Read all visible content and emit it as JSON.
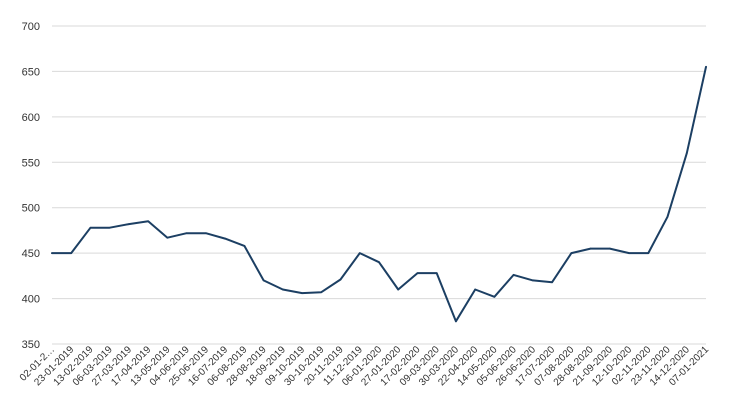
{
  "chart_data": {
    "type": "line",
    "title": "",
    "xlabel": "",
    "ylabel": "",
    "ylim": [
      350,
      700
    ],
    "y_ticks": [
      350,
      400,
      450,
      500,
      550,
      600,
      650,
      700
    ],
    "grid": "horizontal",
    "legend": "none",
    "x_tick_labels": [
      "02-01-2…",
      "23-01-2019",
      "13-02-2019",
      "06-03-2019",
      "27-03-2019",
      "17-04-2019",
      "13-05-2019",
      "04-06-2019",
      "25-06-2019",
      "16-07-2019",
      "06-08-2019",
      "28-08-2019",
      "18-09-2019",
      "09-10-2019",
      "30-10-2019",
      "20-11-2019",
      "11-12-2019",
      "06-01-2020",
      "27-01-2020",
      "17-02-2020",
      "09-03-2020",
      "30-03-2020",
      "22-04-2020",
      "14-05-2020",
      "05-06-2020",
      "26-06-2020",
      "17-07-2020",
      "07-08-2020",
      "28-08-2020",
      "21-09-2020",
      "12-10-2020",
      "02-11-2020",
      "23-11-2020",
      "14-12-2020",
      "07-01-2021"
    ],
    "series": [
      {
        "color": "#1c3f63",
        "x": [
          "02-01-2019",
          "23-01-2019",
          "13-02-2019",
          "06-03-2019",
          "27-03-2019",
          "17-04-2019",
          "13-05-2019",
          "04-06-2019",
          "25-06-2019",
          "16-07-2019",
          "06-08-2019",
          "28-08-2019",
          "18-09-2019",
          "09-10-2019",
          "30-10-2019",
          "20-11-2019",
          "11-12-2019",
          "06-01-2020",
          "27-01-2020",
          "17-02-2020",
          "09-03-2020",
          "30-03-2020",
          "22-04-2020",
          "14-05-2020",
          "05-06-2020",
          "26-06-2020",
          "17-07-2020",
          "07-08-2020",
          "28-08-2020",
          "21-09-2020",
          "12-10-2020",
          "02-11-2020",
          "23-11-2020",
          "14-12-2020",
          "07-01-2021"
        ],
        "values": [
          450,
          450,
          478,
          478,
          482,
          485,
          467,
          472,
          472,
          466,
          458,
          420,
          410,
          406,
          407,
          421,
          450,
          440,
          410,
          428,
          428,
          375,
          410,
          402,
          426,
          420,
          418,
          450,
          455,
          455,
          450,
          450,
          490,
          560,
          655
        ]
      }
    ]
  }
}
